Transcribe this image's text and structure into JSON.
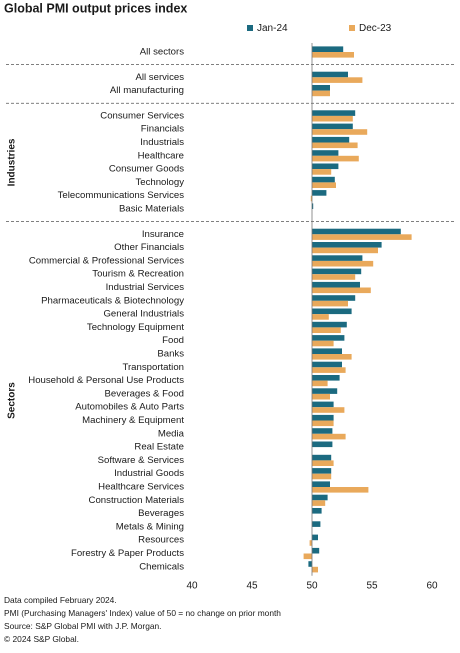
{
  "chart_data": {
    "type": "bar",
    "orientation": "horizontal",
    "title": "Global PMI output prices index",
    "section_labels": [
      null,
      null,
      "Industries",
      "Sectors"
    ],
    "categories": [
      [
        "All sectors"
      ],
      [
        "All services",
        "All manufacturing"
      ],
      [
        "Consumer Services",
        "Financials",
        "Industrials",
        "Healthcare",
        "Consumer Goods",
        "Technology",
        "Telecommunications Services",
        "Basic Materials"
      ],
      [
        "Insurance",
        "Other Financials",
        "Commercial & Professional Services",
        "Tourism & Recreation",
        "Industrial Services",
        "Pharmaceuticals & Biotechnology",
        "General Industrials",
        "Technology Equipment",
        "Food",
        "Banks",
        "Transportation",
        "Household & Personal Use Products",
        "Beverages & Food",
        "Automobiles & Auto Parts",
        "Machinery & Equipment",
        "Media",
        "Real Estate",
        "Software & Services",
        "Industrial Goods",
        "Healthcare Services",
        "Construction Materials",
        "Beverages",
        "Metals & Mining",
        "Resources",
        "Forestry & Paper Products",
        "Chemicals"
      ]
    ],
    "series": [
      {
        "name": "Jan-24",
        "color": "#1b6a80",
        "values": [
          [
            52.6
          ],
          [
            53.0,
            51.5
          ],
          [
            53.6,
            53.4,
            53.1,
            52.2,
            52.2,
            51.9,
            51.2,
            50.1
          ],
          [
            57.4,
            55.8,
            54.2,
            54.1,
            54.0,
            53.6,
            53.3,
            52.9,
            52.7,
            52.5,
            52.5,
            52.3,
            52.1,
            51.8,
            51.8,
            51.7,
            51.7,
            51.6,
            51.6,
            51.5,
            51.3,
            50.8,
            50.7,
            50.5,
            50.6,
            49.7
          ]
        ]
      },
      {
        "name": "Dec-23",
        "color": "#e9a95b",
        "values": [
          [
            53.5
          ],
          [
            54.2,
            51.5
          ],
          [
            53.4,
            54.6,
            53.8,
            53.9,
            51.6,
            52.0,
            49.9,
            50.0
          ],
          [
            58.3,
            55.5,
            55.1,
            53.6,
            54.9,
            53.0,
            51.4,
            52.4,
            51.8,
            53.3,
            52.8,
            51.3,
            51.5,
            52.7,
            51.8,
            52.8,
            50.0,
            51.8,
            51.6,
            54.7,
            51.1,
            50.0,
            50.0,
            49.8,
            49.3,
            50.5
          ]
        ]
      }
    ],
    "baseline": 50,
    "xlim": [
      40,
      60
    ],
    "xticks": [
      40,
      45,
      50,
      55,
      60
    ],
    "legend": "top",
    "notes": [
      "Data compiled February 2024.",
      "PMI (Purchasing Managers' Index) value of 50 = no change on prior month",
      "Source: S&P Global PMI with J.P. Morgan.",
      "© 2024 S&P Global."
    ]
  }
}
